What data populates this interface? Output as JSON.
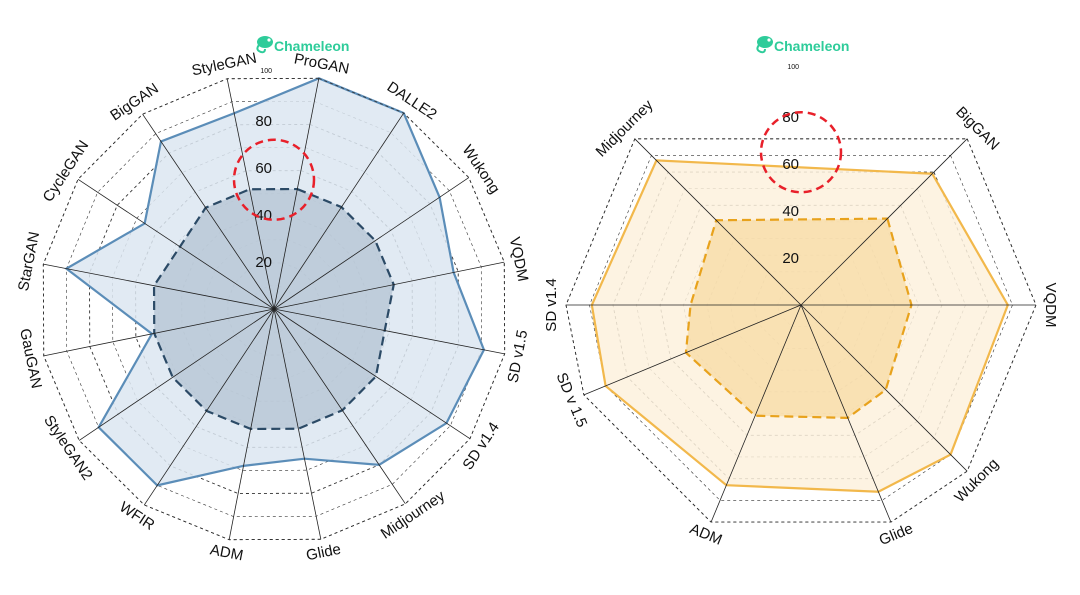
{
  "logo": {
    "text": "Chameleon",
    "color": "#2ecc9a"
  },
  "chart_data": [
    {
      "type": "radar",
      "title": "",
      "rlim": [
        0,
        100
      ],
      "tick_labels": [
        "20",
        "40",
        "60",
        "80",
        "100"
      ],
      "categories": [
        "ProGAN",
        "DALLE2",
        "Wukong",
        "VQDM",
        "SD v1.5",
        "SD v1.4",
        "Midjourney",
        "Glide",
        "ADM",
        "WFIR",
        "StyleGAN2",
        "GauGAN",
        "StarGAN",
        "CycleGAN",
        "BigGAN",
        "StyleGAN"
      ],
      "series": [
        {
          "style": "solid",
          "color": "#5b8db8",
          "fill": "#dce6f1",
          "values": [
            100,
            100,
            85,
            78,
            91,
            88,
            80,
            65,
            68,
            90,
            90,
            53,
            90,
            66,
            86,
            85
          ]
        },
        {
          "style": "dashed",
          "color": "#2b4a66",
          "fill": "#b6c6d4",
          "values": [
            52,
            52,
            52,
            52,
            48,
            52,
            52,
            52,
            52,
            52,
            52,
            52,
            52,
            48,
            52,
            52
          ]
        }
      ],
      "highlight_circle": {
        "value": 55,
        "color": "#e8202a"
      },
      "grid": true
    },
    {
      "type": "radar",
      "title": "",
      "rlim": [
        0,
        100
      ],
      "tick_labels": [
        "20",
        "40",
        "60",
        "80",
        "100"
      ],
      "categories": [
        "BigGAN",
        "VQDM",
        "Wukong",
        "Glide",
        "ADM",
        "SD v 1.5",
        "SD v1.4",
        "Midjourney"
      ],
      "series": [
        {
          "style": "solid",
          "color": "#f2b84b",
          "fill": "#fdf1dd",
          "values": [
            79,
            88,
            90,
            86,
            83,
            90,
            89,
            87
          ]
        },
        {
          "style": "dashed",
          "color": "#e8a21c",
          "fill": "#f8dca8",
          "values": [
            52,
            47,
            51,
            52,
            51,
            53,
            47,
            51
          ]
        }
      ],
      "highlight_circle": {
        "value": 65,
        "color": "#e8202a"
      },
      "grid": true
    }
  ]
}
